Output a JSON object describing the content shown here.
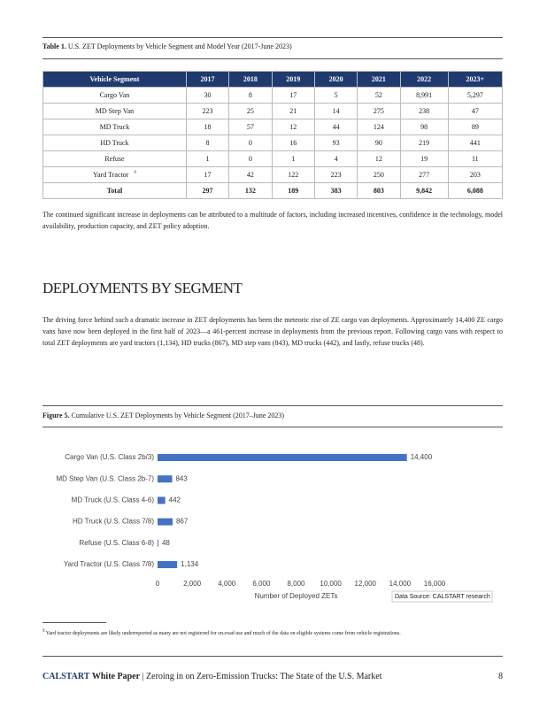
{
  "table": {
    "caption_label": "Table 1.",
    "caption": "U.S. ZET Deployments by Vehicle Segment and Model Year (2017-June 2023)",
    "columns": [
      "Vehicle Segment",
      "2017",
      "2018",
      "2019",
      "2020",
      "2021",
      "2022",
      "2023+"
    ],
    "rows": [
      {
        "segment": "Cargo Van",
        "values": [
          "30",
          "8",
          "17",
          "5",
          "52",
          "8,991",
          "5,297"
        ]
      },
      {
        "segment": "MD Step Van",
        "values": [
          "223",
          "25",
          "21",
          "14",
          "275",
          "238",
          "47"
        ]
      },
      {
        "segment": "MD Truck",
        "values": [
          "18",
          "57",
          "12",
          "44",
          "124",
          "98",
          "89"
        ]
      },
      {
        "segment": "HD Truck",
        "values": [
          "8",
          "0",
          "16",
          "93",
          "90",
          "219",
          "441"
        ]
      },
      {
        "segment": "Refuse",
        "values": [
          "1",
          "0",
          "1",
          "4",
          "12",
          "19",
          "11"
        ]
      },
      {
        "segment": "Yard Tractor",
        "note": "9",
        "values": [
          "17",
          "42",
          "122",
          "223",
          "250",
          "277",
          "203"
        ]
      },
      {
        "segment": "Total",
        "values": [
          "297",
          "132",
          "189",
          "383",
          "803",
          "9,842",
          "6,088"
        ]
      }
    ]
  },
  "paragraph_1": "The continued significant increase in deployments can be attributed to a multitude of factors, including increased incentives, confidence in the technology, model availability, production capacity, and ZET policy adoption.",
  "heading": "DEPLOYMENTS BY SEGMENT",
  "paragraph_2": "The driving force behind such a dramatic increase in ZET deployments has been the meteoric rise of ZE cargo van deployments. Approximately 14,400 ZE cargo vans have now been deployed in the first half of 2023—a 461-percent increase in deployments from the previous report. Following cargo vans with respect to total ZET deployments are yard tractors (1,134), HD trucks (867), MD step vans (843), MD trucks (442), and lastly, refuse trucks (48).",
  "figure": {
    "caption_label": "Figure 5.",
    "caption": "Cumulative U.S. ZET Deployments by Vehicle Segment (2017–June 2023)"
  },
  "chart_data": {
    "type": "bar",
    "orientation": "horizontal",
    "color": "#4472c4",
    "categories": [
      "Cargo Van (U.S. Class 2b/3)",
      "MD Step Van (U.S. Class 2b-7)",
      "MD Truck (U.S. Class 4-6)",
      "HD Truck (U.S. Class 7/8)",
      "Refuse (U.S. Class 6-8)",
      "Yard Tractor (U.S. Class 7/8)"
    ],
    "values": [
      14400,
      843,
      442,
      867,
      48,
      1134
    ],
    "value_labels": [
      "14,400",
      "843",
      "442",
      "867",
      "48",
      "1,134"
    ],
    "xlim": [
      0,
      16000
    ],
    "xticks": [
      0,
      {
        "value": 2000,
        "label": "2,000"
      },
      {
        "value": 4000,
        "label": "4,000"
      },
      {
        "value": 6000,
        "label": "6,000"
      },
      {
        "value": 8000,
        "label": "8,000"
      },
      {
        "value": 10000,
        "label": "10,000"
      },
      {
        "value": 12000,
        "label": "12,000"
      },
      {
        "value": 14000,
        "label": "14,000"
      },
      {
        "value": 16000,
        "label": "16,000"
      }
    ],
    "xlabel": "Number of Deployed ZETs",
    "source": "Data Source: CALSTART research"
  },
  "footnote": {
    "number": "9",
    "text": "Yard tractor deployments are likely underreported as many are not registered for on-road use and much of the data on eligible systems come from vehicle registrations."
  },
  "footer": {
    "brand": "CALSTART",
    "doc_type": "White Paper",
    "title": "| Zeroing in on Zero-Emission Trucks: The State of the U.S. Market",
    "page": "8"
  }
}
